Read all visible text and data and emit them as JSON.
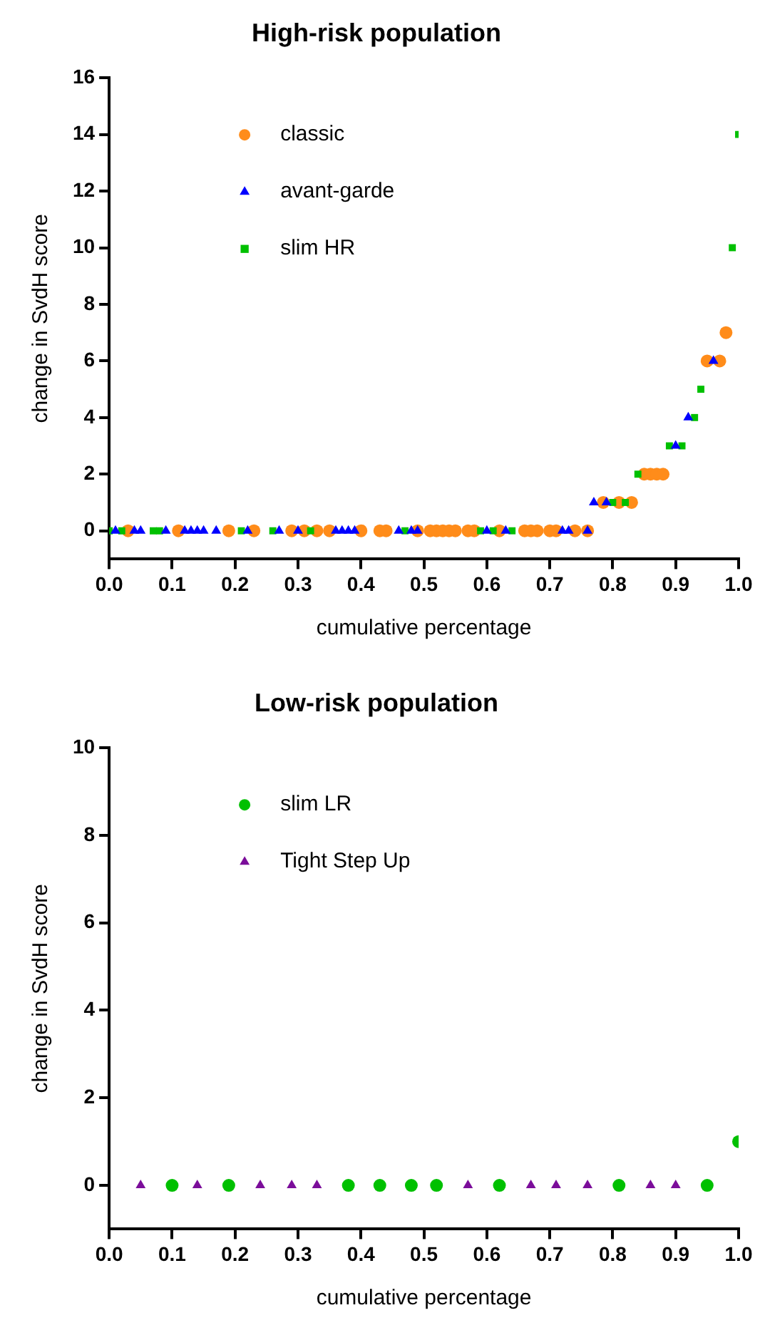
{
  "chart_data": [
    {
      "type": "scatter",
      "title": "High-risk population",
      "xlabel": "cumulative percentage",
      "ylabel": "change in SvdH score",
      "xlim": [
        0,
        1
      ],
      "ylim": [
        -1,
        16
      ],
      "xticks": [
        {
          "value": 0,
          "label": "0.0"
        },
        {
          "value": 0.1,
          "label": "0.1"
        },
        {
          "value": 0.2,
          "label": "0.2"
        },
        {
          "value": 0.3,
          "label": "0.3"
        },
        {
          "value": 0.4,
          "label": "0.4"
        },
        {
          "value": 0.5,
          "label": "0.5"
        },
        {
          "value": 0.6,
          "label": "0.6"
        },
        {
          "value": 0.7,
          "label": "0.7"
        },
        {
          "value": 0.8,
          "label": "0.8"
        },
        {
          "value": 0.9,
          "label": "0.9"
        },
        {
          "value": 1,
          "label": "1.0"
        }
      ],
      "yticks": [
        0,
        2,
        4,
        6,
        8,
        10,
        12,
        14,
        16
      ],
      "grid": false,
      "legend": "top left",
      "series": [
        {
          "name": "classic",
          "color": "#ff8c1a",
          "marker": "circle",
          "x": [
            0.03,
            0.11,
            0.19,
            0.23,
            0.29,
            0.31,
            0.33,
            0.35,
            0.4,
            0.43,
            0.44,
            0.49,
            0.51,
            0.52,
            0.53,
            0.54,
            0.55,
            0.57,
            0.58,
            0.62,
            0.66,
            0.67,
            0.68,
            0.7,
            0.71,
            0.74,
            0.76,
            0.785,
            0.81,
            0.83,
            0.85,
            0.86,
            0.87,
            0.88,
            0.95,
            0.97,
            0.98
          ],
          "values": [
            0,
            0,
            0,
            0,
            0,
            0,
            0,
            0,
            0,
            0,
            0,
            0,
            0,
            0,
            0,
            0,
            0,
            0,
            0,
            0,
            0,
            0,
            0,
            0,
            0,
            0,
            0,
            1,
            1,
            1,
            2,
            2,
            2,
            2,
            6,
            6,
            7
          ]
        },
        {
          "name": "avant-garde",
          "color": "#0000ff",
          "marker": "triangle",
          "x": [
            0.01,
            0.04,
            0.05,
            0.09,
            0.12,
            0.13,
            0.14,
            0.15,
            0.17,
            0.22,
            0.27,
            0.3,
            0.36,
            0.37,
            0.38,
            0.39,
            0.46,
            0.48,
            0.49,
            0.6,
            0.63,
            0.72,
            0.73,
            0.76,
            0.77,
            0.79,
            0.9,
            0.92,
            0.96
          ],
          "values": [
            0,
            0,
            0,
            0,
            0,
            0,
            0,
            0,
            0,
            0,
            0,
            0,
            0,
            0,
            0,
            0,
            0,
            0,
            0,
            0,
            0,
            0,
            0,
            0,
            1,
            1,
            3,
            4,
            6
          ]
        },
        {
          "name": "slim HR",
          "color": "#00c000",
          "marker": "square",
          "x": [
            0.0,
            0.02,
            0.07,
            0.08,
            0.21,
            0.26,
            0.32,
            0.47,
            0.59,
            0.61,
            0.64,
            0.8,
            0.82,
            0.84,
            0.89,
            0.91,
            0.93,
            0.94,
            0.99,
            1.0
          ],
          "values": [
            0,
            0,
            0,
            0,
            0,
            0,
            0,
            0,
            0,
            0,
            0,
            1,
            1,
            2,
            3,
            3,
            4,
            5,
            10,
            14
          ]
        }
      ]
    },
    {
      "type": "scatter",
      "title": "Low-risk population",
      "xlabel": "cumulative percentage",
      "ylabel": "change in SvdH score",
      "xlim": [
        0,
        1
      ],
      "ylim": [
        -1,
        10
      ],
      "xticks": [
        {
          "value": 0,
          "label": "0.0"
        },
        {
          "value": 0.1,
          "label": "0.1"
        },
        {
          "value": 0.2,
          "label": "0.2"
        },
        {
          "value": 0.3,
          "label": "0.3"
        },
        {
          "value": 0.4,
          "label": "0.4"
        },
        {
          "value": 0.5,
          "label": "0.5"
        },
        {
          "value": 0.6,
          "label": "0.6"
        },
        {
          "value": 0.7,
          "label": "0.7"
        },
        {
          "value": 0.8,
          "label": "0.8"
        },
        {
          "value": 0.9,
          "label": "0.9"
        },
        {
          "value": 1,
          "label": "1.0"
        }
      ],
      "yticks": [
        0,
        2,
        4,
        6,
        8,
        10
      ],
      "grid": false,
      "legend": "top left",
      "series": [
        {
          "name": "slim LR",
          "color": "#00c000",
          "marker": "circle",
          "x": [
            0.1,
            0.19,
            0.38,
            0.43,
            0.48,
            0.52,
            0.62,
            0.81,
            0.95,
            1.0
          ],
          "values": [
            0,
            0,
            0,
            0,
            0,
            0,
            0,
            0,
            0,
            1
          ]
        },
        {
          "name": "Tight Step Up",
          "color": "#7b0d9a",
          "marker": "triangle",
          "x": [
            0.05,
            0.14,
            0.24,
            0.29,
            0.33,
            0.57,
            0.67,
            0.71,
            0.76,
            0.86,
            0.9
          ],
          "values": [
            0,
            0,
            0,
            0,
            0,
            0,
            0,
            0,
            0,
            0,
            0
          ]
        }
      ]
    }
  ]
}
